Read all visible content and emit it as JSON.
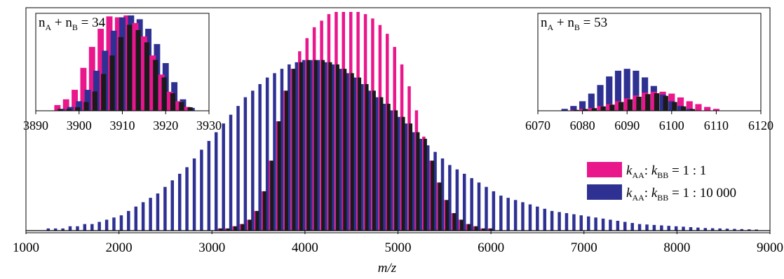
{
  "colors": {
    "series_1_1": "#ea168c",
    "series_1_10000": "#2e3192",
    "overlap": "#1a1a1a"
  },
  "chart_data": [
    {
      "id": "main",
      "type": "bar",
      "xlabel": "m/z",
      "xlim": [
        1000,
        9000
      ],
      "x_ticks": [
        "1000",
        "2000",
        "3000",
        "4000",
        "5000",
        "6000",
        "7000",
        "8000",
        "9000"
      ],
      "y_axis_visible": false,
      "grid": false,
      "legend_position": "right",
      "series": [
        {
          "name": "kAA : kBB = 1 : 1",
          "name_parts": {
            "k": "k",
            "sub1": "AA",
            "sep": ": ",
            "sub2": "BB",
            "ratio": " = 1 : 1"
          },
          "color_key": "series_1_1",
          "peaks_mz": [
            3080,
            3158,
            3237,
            3315,
            3394,
            3472,
            3551,
            3629,
            3708,
            3786,
            3865,
            3943,
            4022,
            4100,
            4179,
            4257,
            4336,
            4414,
            4493,
            4571,
            4650,
            4728,
            4807,
            4885,
            4964,
            5042,
            5121,
            5199,
            5278,
            5356,
            5435,
            5513,
            5592,
            5670,
            5749,
            5827,
            5906,
            5984
          ],
          "envelope_heights": [
            0.01,
            0.01,
            0.02,
            0.03,
            0.05,
            0.09,
            0.18,
            0.32,
            0.5,
            0.64,
            0.74,
            0.82,
            0.88,
            0.93,
            0.96,
            0.99,
            1.0,
            1.0,
            1.0,
            1.0,
            0.99,
            0.97,
            0.94,
            0.9,
            0.84,
            0.76,
            0.66,
            0.55,
            0.43,
            0.32,
            0.22,
            0.14,
            0.08,
            0.05,
            0.03,
            0.02,
            0.01,
            0.01
          ]
        },
        {
          "name": "kAA : kBB = 1 : 10 000",
          "name_parts": {
            "k": "k",
            "sub1": "AA",
            "sep": ": ",
            "sub2": "BB",
            "ratio": " = 1 : 10 000"
          },
          "color_key": "series_1_10000",
          "peaks_mz": [
            1240,
            1318,
            1397,
            1475,
            1554,
            1632,
            1711,
            1789,
            1868,
            1946,
            2025,
            2103,
            2182,
            2260,
            2339,
            2417,
            2496,
            2574,
            2653,
            2731,
            2810,
            2888,
            2967,
            3045,
            3124,
            3202,
            3281,
            3359,
            3438,
            3516,
            3595,
            3673,
            3752,
            3830,
            3909,
            3987,
            4066,
            4144,
            4223,
            4301,
            4380,
            4458,
            4537,
            4615,
            4694,
            4772,
            4851,
            4929,
            5008,
            5086,
            5165,
            5243,
            5322,
            5400,
            5479,
            5557,
            5636,
            5714,
            5793,
            5871,
            5950,
            6028,
            6107,
            6185,
            6264,
            6342,
            6421,
            6499,
            6578,
            6656,
            6735,
            6813,
            6892,
            6970,
            7049,
            7127,
            7206,
            7284,
            7363,
            7441,
            7520,
            7598,
            7677,
            7755,
            7834,
            7912,
            7991,
            8069,
            8148,
            8226,
            8305,
            8383,
            8462,
            8540,
            8619,
            8697,
            8776,
            8854
          ],
          "envelope_heights": [
            0.01,
            0.01,
            0.01,
            0.02,
            0.02,
            0.03,
            0.03,
            0.04,
            0.05,
            0.06,
            0.07,
            0.09,
            0.11,
            0.13,
            0.15,
            0.17,
            0.2,
            0.23,
            0.26,
            0.29,
            0.33,
            0.37,
            0.41,
            0.45,
            0.49,
            0.53,
            0.57,
            0.61,
            0.64,
            0.67,
            0.7,
            0.72,
            0.74,
            0.76,
            0.77,
            0.78,
            0.78,
            0.78,
            0.77,
            0.76,
            0.74,
            0.72,
            0.7,
            0.67,
            0.64,
            0.61,
            0.58,
            0.55,
            0.52,
            0.49,
            0.45,
            0.42,
            0.39,
            0.36,
            0.33,
            0.3,
            0.28,
            0.26,
            0.24,
            0.22,
            0.2,
            0.18,
            0.16,
            0.15,
            0.14,
            0.13,
            0.12,
            0.11,
            0.1,
            0.09,
            0.085,
            0.08,
            0.075,
            0.07,
            0.065,
            0.06,
            0.055,
            0.05,
            0.045,
            0.04,
            0.035,
            0.03,
            0.028,
            0.026,
            0.024,
            0.022,
            0.02,
            0.018,
            0.016,
            0.014,
            0.012,
            0.011,
            0.01,
            0.009,
            0.008,
            0.007,
            0.006,
            0.005
          ]
        }
      ]
    },
    {
      "id": "inset-left",
      "type": "bar",
      "title_parts": {
        "n": "n",
        "subA": "A",
        "plus": " + n",
        "subB": "B",
        "rest": " = 34"
      },
      "xlim": [
        3890,
        3930
      ],
      "x_ticks": [
        "3890",
        "3900",
        "3910",
        "3920",
        "3930"
      ],
      "series": [
        {
          "name": "1 : 1",
          "color_key": "series_1_1",
          "x": [
            3895,
            3897,
            3899,
            3901,
            3903,
            3905,
            3907,
            3909,
            3911,
            3913,
            3915,
            3917,
            3919,
            3921,
            3923,
            3925
          ],
          "values": [
            0.06,
            0.12,
            0.22,
            0.45,
            0.67,
            0.86,
            0.99,
            0.98,
            1.0,
            0.92,
            0.78,
            0.58,
            0.38,
            0.2,
            0.1,
            0.04
          ]
        },
        {
          "name": "1 : 10 000",
          "color_key": "series_1_10000",
          "x": [
            3896,
            3898,
            3900,
            3902,
            3904,
            3906,
            3908,
            3910,
            3912,
            3914,
            3916,
            3918,
            3920,
            3922,
            3924,
            3926
          ],
          "values": [
            0.02,
            0.04,
            0.1,
            0.22,
            0.42,
            0.63,
            0.84,
            0.98,
            1.0,
            0.96,
            0.86,
            0.7,
            0.5,
            0.3,
            0.12,
            0.03
          ]
        }
      ]
    },
    {
      "id": "inset-right",
      "type": "bar",
      "title_parts": {
        "n": "n",
        "subA": "A",
        "plus": " + n",
        "subB": "B",
        "rest": " = 53"
      },
      "xlim": [
        6070,
        6120
      ],
      "x_ticks": [
        "6070",
        "6080",
        "6090",
        "6100",
        "6110",
        "6120"
      ],
      "series": [
        {
          "name": "1 : 1",
          "color_key": "series_1_1",
          "x": [
            6078,
            6080,
            6082,
            6084,
            6086,
            6088,
            6090,
            6092,
            6094,
            6096,
            6098,
            6100,
            6102,
            6104,
            6106,
            6108,
            6110
          ],
          "values": [
            0.01,
            0.02,
            0.03,
            0.05,
            0.07,
            0.1,
            0.13,
            0.16,
            0.19,
            0.2,
            0.2,
            0.18,
            0.14,
            0.1,
            0.07,
            0.04,
            0.02
          ]
        },
        {
          "name": "1 : 10 000",
          "color_key": "series_1_10000",
          "x": [
            6076,
            6078,
            6080,
            6082,
            6084,
            6086,
            6088,
            6090,
            6092,
            6094,
            6096,
            6098,
            6100,
            6102,
            6104
          ],
          "values": [
            0.02,
            0.05,
            0.1,
            0.18,
            0.27,
            0.36,
            0.42,
            0.44,
            0.42,
            0.35,
            0.26,
            0.17,
            0.1,
            0.05,
            0.02
          ]
        }
      ]
    }
  ]
}
